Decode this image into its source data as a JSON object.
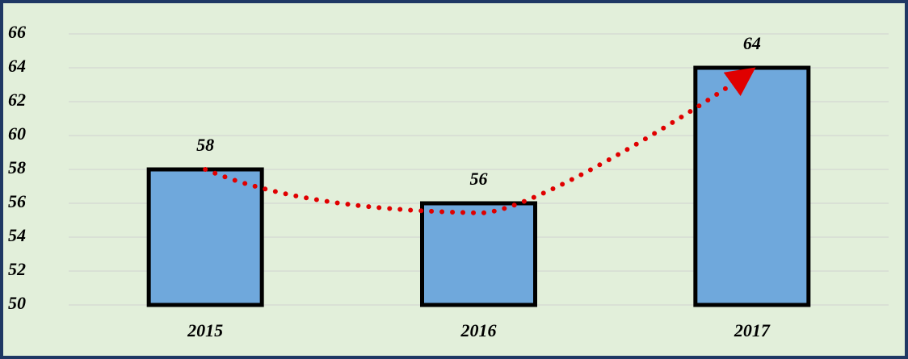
{
  "chart_data": {
    "type": "bar",
    "categories": [
      "2015",
      "2016",
      "2017"
    ],
    "values": [
      58,
      56,
      64
    ],
    "color": "#6fa8dc",
    "ylim": [
      50,
      66
    ],
    "yticks": [
      50,
      52,
      54,
      56,
      58,
      60,
      62,
      64,
      66
    ],
    "grid": true
  }
}
